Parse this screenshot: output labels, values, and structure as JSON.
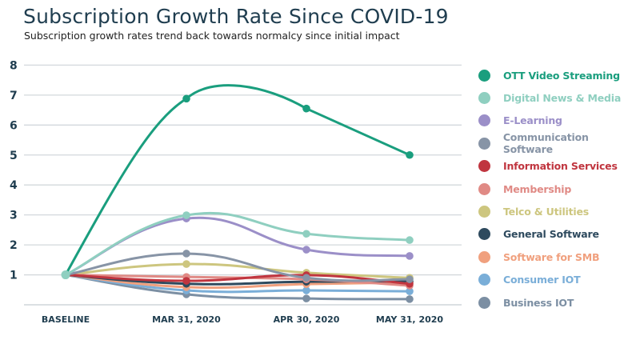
{
  "chart_data": {
    "type": "line",
    "title": "Subscription Growth Rate Since COVID-19",
    "subtitle": "Subscription growth rates trend back towards normalcy since initial impact",
    "xlabel": "",
    "ylabel": "",
    "categories": [
      "BASELINE",
      "MAR 31, 2020",
      "APR 30, 2020",
      "MAY 31, 2020"
    ],
    "yticks": [
      1,
      2,
      3,
      4,
      5,
      6,
      7,
      8
    ],
    "ylim": [
      0,
      8
    ],
    "grid": true,
    "legend_position": "right",
    "series": [
      {
        "name": "OTT Video Streaming",
        "color": "#1a9e7e",
        "values": [
          1,
          6.88,
          6.55,
          5.0
        ]
      },
      {
        "name": "Digital News & Media",
        "color": "#8fcfc0",
        "values": [
          1,
          2.99,
          2.37,
          2.16
        ]
      },
      {
        "name": "E-Learning",
        "color": "#9b8fc8",
        "values": [
          1,
          2.88,
          1.84,
          1.63
        ]
      },
      {
        "name": "Communication Software",
        "color": "#8794a6",
        "values": [
          1,
          1.71,
          0.9,
          0.85
        ]
      },
      {
        "name": "Information Services",
        "color": "#c0353f",
        "values": [
          1,
          0.8,
          0.99,
          0.7
        ]
      },
      {
        "name": "Membership",
        "color": "#e08a85",
        "values": [
          1,
          0.93,
          0.85,
          0.64
        ]
      },
      {
        "name": "Telco & Utilities",
        "color": "#cdc67f",
        "values": [
          1,
          1.36,
          1.07,
          0.9
        ]
      },
      {
        "name": "General Software",
        "color": "#2e4a5e",
        "values": [
          1,
          0.7,
          0.77,
          0.78
        ]
      },
      {
        "name": "Software for SMB",
        "color": "#f0a07e",
        "values": [
          1,
          0.59,
          0.69,
          0.75
        ]
      },
      {
        "name": "Consumer IOT",
        "color": "#7aaed8",
        "values": [
          1,
          0.48,
          0.48,
          0.45
        ]
      },
      {
        "name": "Business IOT",
        "color": "#7c8fa3",
        "values": [
          1,
          0.35,
          0.21,
          0.19
        ]
      }
    ]
  }
}
